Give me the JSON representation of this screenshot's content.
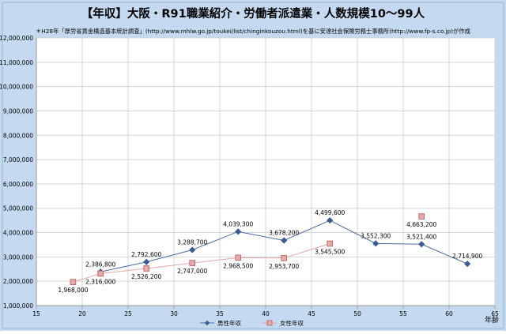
{
  "chart_data": {
    "type": "line",
    "title": "【年収】大阪・R91職業紹介・労働者派遣業・人数規模10～99人",
    "subtitle": "＊H28年「厚労省賃金構造基本統計調査」(http://www.mhlw.go.jp/toukei/list/chinginkouzou.html)を基に安達社会保険労務士事務所(http://www.fp-s.co.jp)が作成",
    "xlabel": "年齢",
    "ylabel": "",
    "xlim": [
      15,
      65
    ],
    "ylim": [
      1000000,
      12000000
    ],
    "x_ticks": [
      15,
      20,
      25,
      30,
      35,
      40,
      45,
      50,
      55,
      60,
      65
    ],
    "y_ticks": [
      1000000,
      2000000,
      3000000,
      4000000,
      5000000,
      6000000,
      7000000,
      8000000,
      9000000,
      10000000,
      11000000,
      12000000
    ],
    "x_tick_labels": [
      "15",
      "20",
      "25",
      "30",
      "35",
      "40",
      "45",
      "50",
      "55",
      "60",
      "65"
    ],
    "y_tick_labels": [
      "1,000,000",
      "2,000,000",
      "3,000,000",
      "4,000,000",
      "5,000,000",
      "6,000,000",
      "7,000,000",
      "8,000,000",
      "9,000,000",
      "10,000,000",
      "11,000,000",
      "12,000,000"
    ],
    "grid": true,
    "legend_position": "bottom",
    "series": [
      {
        "name": "男性年収",
        "color": "#4a6aa0",
        "marker": "diamond",
        "x": [
          22,
          27,
          32,
          37,
          42,
          47,
          52,
          57,
          62
        ],
        "y": [
          2386800,
          2792600,
          3288700,
          4039300,
          3678200,
          4499600,
          3552300,
          3521400,
          2714900
        ],
        "labels": [
          "2,386,800",
          "2,792,600",
          "3,288,700",
          "4,039,300",
          "3,678,200",
          "4,499,600",
          "3,552,300",
          "3,521,400",
          "2,714,900"
        ]
      },
      {
        "name": "女性年収",
        "color": "#e2a6a6",
        "marker": "square",
        "x": [
          19,
          22,
          27,
          32,
          37,
          42,
          47,
          57
        ],
        "y": [
          1968000,
          2316000,
          2526200,
          2747000,
          2968500,
          2953700,
          3545500,
          4663200
        ],
        "labels": [
          "1,968,000",
          "2,316,000",
          "2,526,200",
          "2,747,000",
          "2,968,500",
          "2,953,700",
          "3,545,500",
          "4,663,200"
        ],
        "segments": [
          [
            0,
            6
          ],
          [
            7,
            7
          ]
        ]
      }
    ]
  },
  "colors": {
    "background": "#c5daf1",
    "plot_background": "#ffffff",
    "grid": "#d4d4d4",
    "axis": "#9a9a9a",
    "text": "#000000"
  }
}
